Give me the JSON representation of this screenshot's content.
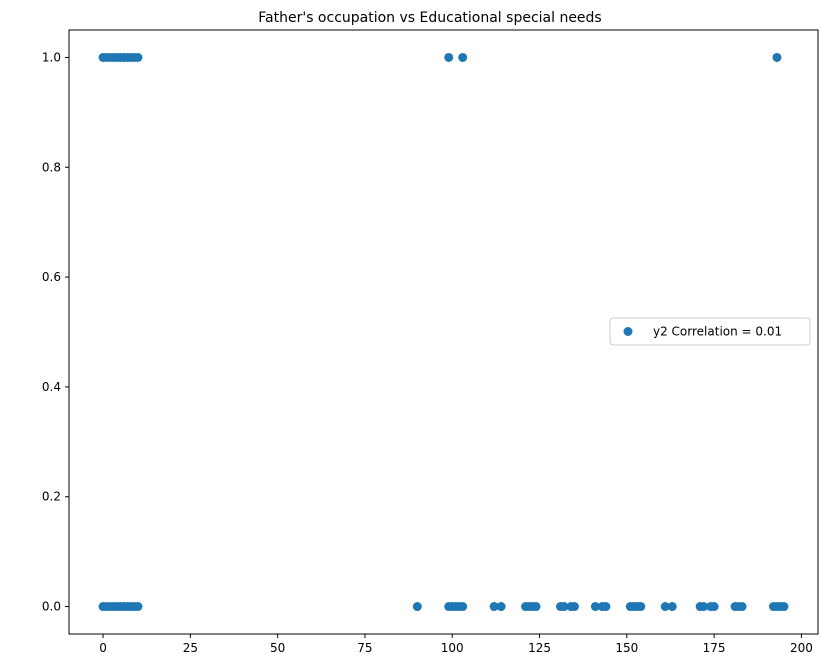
{
  "chart_data": {
    "type": "scatter",
    "title": "Father's occupation vs Educational special needs",
    "xlabel": "",
    "ylabel": "",
    "xlim": [
      -9.75,
      204.75
    ],
    "ylim": [
      -0.05,
      1.05
    ],
    "x_ticks": [
      0,
      25,
      50,
      75,
      100,
      125,
      150,
      175,
      200
    ],
    "x_tick_labels": [
      "0",
      "25",
      "50",
      "75",
      "100",
      "125",
      "150",
      "175",
      "200"
    ],
    "y_ticks": [
      0.0,
      0.2,
      0.4,
      0.6,
      0.8,
      1.0
    ],
    "y_tick_labels": [
      "0.0",
      "0.2",
      "0.4",
      "0.6",
      "0.8",
      "1.0"
    ],
    "grid": false,
    "legend_position": "center-right",
    "series": [
      {
        "name": "y2 Correlation = 0.01",
        "color": "#1f77b4",
        "marker": "circle",
        "points": [
          {
            "x": 0,
            "y": 1
          },
          {
            "x": 1,
            "y": 1
          },
          {
            "x": 2,
            "y": 1
          },
          {
            "x": 3,
            "y": 1
          },
          {
            "x": 4,
            "y": 1
          },
          {
            "x": 5,
            "y": 1
          },
          {
            "x": 6,
            "y": 1
          },
          {
            "x": 7,
            "y": 1
          },
          {
            "x": 8,
            "y": 1
          },
          {
            "x": 9,
            "y": 1
          },
          {
            "x": 10,
            "y": 1
          },
          {
            "x": 99,
            "y": 1
          },
          {
            "x": 103,
            "y": 1
          },
          {
            "x": 193,
            "y": 1
          },
          {
            "x": 0,
            "y": 0
          },
          {
            "x": 1,
            "y": 0
          },
          {
            "x": 2,
            "y": 0
          },
          {
            "x": 3,
            "y": 0
          },
          {
            "x": 4,
            "y": 0
          },
          {
            "x": 5,
            "y": 0
          },
          {
            "x": 6,
            "y": 0
          },
          {
            "x": 7,
            "y": 0
          },
          {
            "x": 8,
            "y": 0
          },
          {
            "x": 9,
            "y": 0
          },
          {
            "x": 10,
            "y": 0
          },
          {
            "x": 90,
            "y": 0
          },
          {
            "x": 99,
            "y": 0
          },
          {
            "x": 100,
            "y": 0
          },
          {
            "x": 101,
            "y": 0
          },
          {
            "x": 102,
            "y": 0
          },
          {
            "x": 103,
            "y": 0
          },
          {
            "x": 112,
            "y": 0
          },
          {
            "x": 114,
            "y": 0
          },
          {
            "x": 121,
            "y": 0
          },
          {
            "x": 122,
            "y": 0
          },
          {
            "x": 123,
            "y": 0
          },
          {
            "x": 124,
            "y": 0
          },
          {
            "x": 131,
            "y": 0
          },
          {
            "x": 132,
            "y": 0
          },
          {
            "x": 134,
            "y": 0
          },
          {
            "x": 135,
            "y": 0
          },
          {
            "x": 141,
            "y": 0
          },
          {
            "x": 143,
            "y": 0
          },
          {
            "x": 144,
            "y": 0
          },
          {
            "x": 151,
            "y": 0
          },
          {
            "x": 152,
            "y": 0
          },
          {
            "x": 153,
            "y": 0
          },
          {
            "x": 154,
            "y": 0
          },
          {
            "x": 161,
            "y": 0
          },
          {
            "x": 163,
            "y": 0
          },
          {
            "x": 171,
            "y": 0
          },
          {
            "x": 172,
            "y": 0
          },
          {
            "x": 174,
            "y": 0
          },
          {
            "x": 175,
            "y": 0
          },
          {
            "x": 181,
            "y": 0
          },
          {
            "x": 182,
            "y": 0
          },
          {
            "x": 183,
            "y": 0
          },
          {
            "x": 192,
            "y": 0
          },
          {
            "x": 193,
            "y": 0
          },
          {
            "x": 194,
            "y": 0
          },
          {
            "x": 195,
            "y": 0
          }
        ]
      }
    ]
  }
}
